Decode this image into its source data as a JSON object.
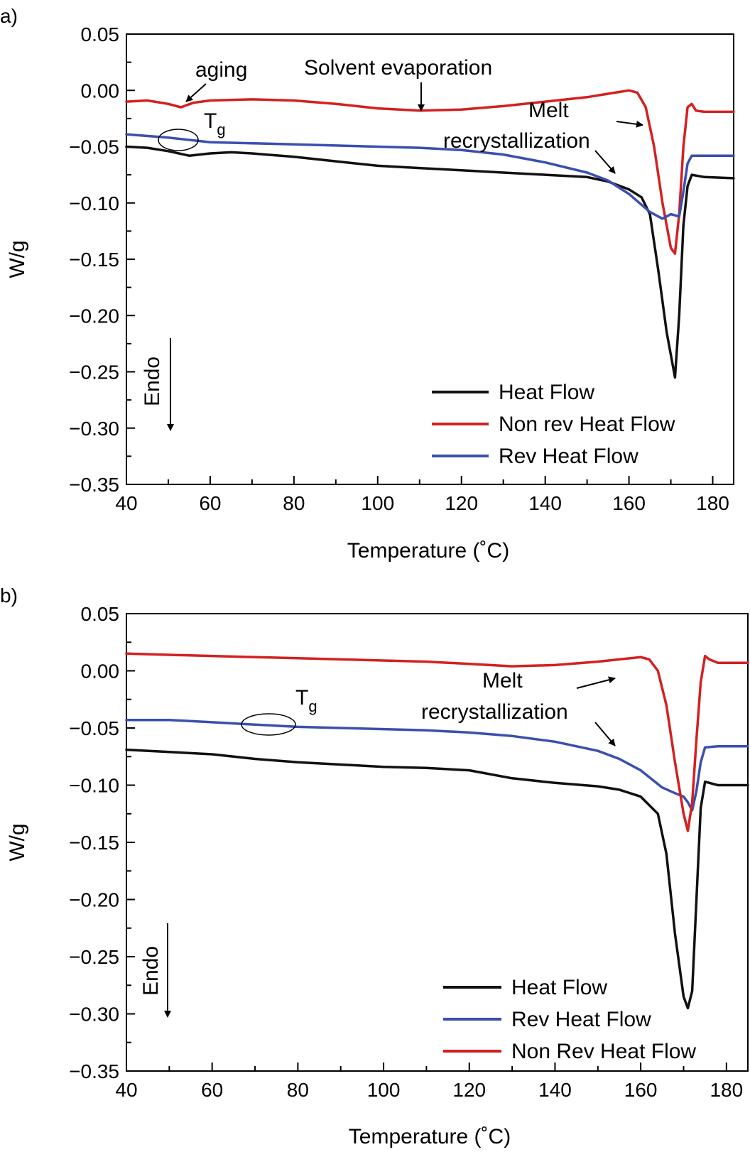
{
  "chart_data": [
    {
      "panel_label": "a)",
      "type": "line",
      "xlabel": "Temperature (˚C)",
      "ylabel": "W/g",
      "xlim": [
        40,
        185
      ],
      "ylim": [
        -0.35,
        0.05
      ],
      "x_ticks": [
        "40",
        "60",
        "80",
        "100",
        "120",
        "140",
        "160",
        "180"
      ],
      "y_ticks": [
        "0.05",
        "0.00",
        "−0.05",
        "−0.10",
        "−0.15",
        "−0.20",
        "−0.25",
        "−0.30",
        "−0.35"
      ],
      "legend_position": "bottom-right",
      "legend": [
        "Heat Flow",
        "Non rev Heat Flow",
        "Rev Heat Flow"
      ],
      "series": [
        {
          "name": "Heat Flow",
          "color": "#111111",
          "x": [
            40,
            45,
            50,
            55,
            60,
            65,
            70,
            80,
            90,
            100,
            110,
            120,
            130,
            140,
            150,
            155,
            160,
            163,
            165,
            167,
            169,
            171,
            172,
            173,
            174,
            175,
            178,
            185
          ],
          "y": [
            -0.05,
            -0.051,
            -0.054,
            -0.058,
            -0.056,
            -0.055,
            -0.056,
            -0.059,
            -0.063,
            -0.067,
            -0.069,
            -0.071,
            -0.073,
            -0.075,
            -0.077,
            -0.081,
            -0.088,
            -0.095,
            -0.11,
            -0.16,
            -0.215,
            -0.255,
            -0.2,
            -0.12,
            -0.085,
            -0.075,
            -0.077,
            -0.078
          ]
        },
        {
          "name": "Non rev Heat Flow",
          "color": "#d42020",
          "x": [
            40,
            45,
            50,
            53,
            56,
            60,
            70,
            80,
            90,
            100,
            110,
            120,
            130,
            140,
            150,
            155,
            160,
            162,
            164,
            166,
            168,
            170,
            171,
            172,
            173,
            174,
            175,
            176,
            178,
            185
          ],
          "y": [
            -0.01,
            -0.009,
            -0.012,
            -0.015,
            -0.011,
            -0.009,
            -0.008,
            -0.009,
            -0.012,
            -0.016,
            -0.018,
            -0.017,
            -0.014,
            -0.01,
            -0.006,
            -0.003,
            0.0,
            -0.002,
            -0.015,
            -0.05,
            -0.1,
            -0.14,
            -0.145,
            -0.11,
            -0.05,
            -0.015,
            -0.012,
            -0.018,
            -0.019,
            -0.019
          ]
        },
        {
          "name": "Rev Heat Flow",
          "color": "#3a4fb0",
          "x": [
            40,
            50,
            60,
            70,
            80,
            90,
            100,
            110,
            120,
            130,
            140,
            150,
            155,
            160,
            165,
            168,
            170,
            172,
            173,
            174,
            175,
            178,
            185
          ],
          "y": [
            -0.039,
            -0.042,
            -0.046,
            -0.047,
            -0.048,
            -0.049,
            -0.05,
            -0.051,
            -0.053,
            -0.057,
            -0.064,
            -0.073,
            -0.08,
            -0.092,
            -0.108,
            -0.114,
            -0.11,
            -0.112,
            -0.09,
            -0.065,
            -0.058,
            -0.058,
            -0.058
          ]
        }
      ],
      "annotations": {
        "aging": "aging",
        "solvent": "Solvent evaporation",
        "melt": "Melt",
        "recryst": "recrystallization",
        "tg_main": "T",
        "tg_sub": "g",
        "endo": "Endo"
      }
    },
    {
      "panel_label": "b)",
      "type": "line",
      "xlabel": "Temperature (˚C)",
      "ylabel": "W/g",
      "xlim": [
        40,
        185
      ],
      "ylim": [
        -0.35,
        0.05
      ],
      "x_ticks": [
        "40",
        "60",
        "80",
        "100",
        "120",
        "140",
        "160",
        "180"
      ],
      "y_ticks": [
        "0.05",
        "0.00",
        "−0.05",
        "−0.10",
        "−0.15",
        "−0.20",
        "−0.25",
        "−0.30",
        "−0.35"
      ],
      "legend_position": "bottom-right",
      "legend": [
        "Heat Flow",
        "Rev Heat Flow",
        "Non Rev Heat Flow"
      ],
      "series": [
        {
          "name": "Heat Flow",
          "color": "#111111",
          "x": [
            40,
            50,
            60,
            70,
            80,
            90,
            100,
            110,
            120,
            130,
            140,
            150,
            155,
            160,
            164,
            166,
            168,
            170,
            171,
            172,
            173,
            174,
            175,
            178,
            185
          ],
          "y": [
            -0.069,
            -0.071,
            -0.073,
            -0.077,
            -0.08,
            -0.082,
            -0.084,
            -0.085,
            -0.087,
            -0.094,
            -0.098,
            -0.101,
            -0.104,
            -0.11,
            -0.125,
            -0.16,
            -0.23,
            -0.285,
            -0.295,
            -0.28,
            -0.2,
            -0.12,
            -0.097,
            -0.1,
            -0.1
          ]
        },
        {
          "name": "Rev Heat Flow",
          "color": "#3a4fb0",
          "x": [
            40,
            50,
            60,
            70,
            80,
            90,
            100,
            110,
            120,
            130,
            140,
            150,
            155,
            160,
            165,
            168,
            170,
            171,
            172,
            173,
            174,
            175,
            178,
            185
          ],
          "y": [
            -0.043,
            -0.043,
            -0.045,
            -0.047,
            -0.049,
            -0.05,
            -0.051,
            -0.052,
            -0.054,
            -0.057,
            -0.062,
            -0.07,
            -0.077,
            -0.087,
            -0.102,
            -0.107,
            -0.11,
            -0.115,
            -0.122,
            -0.105,
            -0.08,
            -0.067,
            -0.066,
            -0.066
          ]
        },
        {
          "name": "Non Rev Heat Flow",
          "color": "#d42020",
          "x": [
            40,
            50,
            60,
            70,
            80,
            90,
            100,
            110,
            120,
            130,
            140,
            150,
            155,
            160,
            162,
            164,
            166,
            168,
            170,
            171,
            172,
            173,
            174,
            175,
            176,
            178,
            185
          ],
          "y": [
            0.015,
            0.014,
            0.013,
            0.012,
            0.011,
            0.01,
            0.009,
            0.008,
            0.006,
            0.004,
            0.005,
            0.008,
            0.01,
            0.012,
            0.01,
            0.0,
            -0.03,
            -0.08,
            -0.125,
            -0.14,
            -0.115,
            -0.06,
            -0.01,
            0.013,
            0.01,
            0.007,
            0.007
          ]
        }
      ],
      "annotations": {
        "melt": "Melt",
        "recryst": "recrystallization",
        "tg_main": "T",
        "tg_sub": "g",
        "endo": "Endo"
      }
    }
  ]
}
